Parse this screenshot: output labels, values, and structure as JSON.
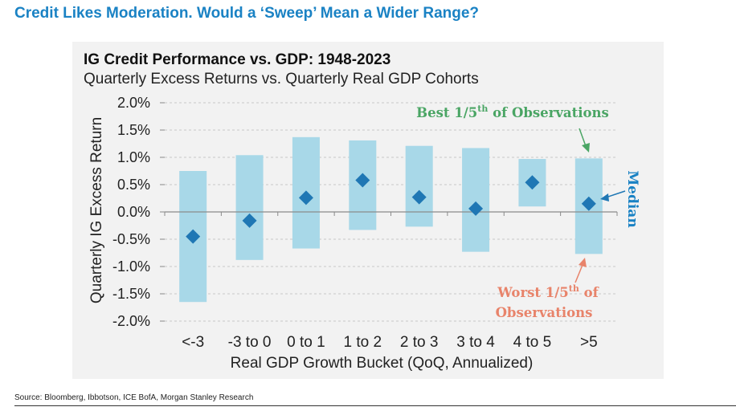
{
  "page": {
    "headline": "Credit Likes Moderation. Would a ‘Sweep’ Mean a Wider Range?",
    "source": "Source: Bloomberg, Ibbotson, ICE BofA, Morgan Stanley Research"
  },
  "colors": {
    "headline": "#1a82c4",
    "bar": "#a8d8e8",
    "median_marker": "#1f77b4",
    "best_annotation": "#4aa564",
    "worst_annotation": "#e8836a",
    "median_label": "#1a82c4"
  },
  "chart_data": {
    "type": "bar",
    "title": "IG Credit Performance vs. GDP: 1948-2023",
    "subtitle": "Quarterly Excess Returns vs. Quarterly Real GDP Cohorts",
    "xlabel": "Real GDP Growth Bucket (QoQ, Annualized)",
    "ylabel": "Quarterly IG Excess Return",
    "ylim": [
      -2.0,
      2.0
    ],
    "yticks": [
      2.0,
      1.5,
      1.0,
      0.5,
      0.0,
      -0.5,
      -1.0,
      -1.5,
      -2.0
    ],
    "ytick_labels": [
      "2.0%",
      "1.5%",
      "1.0%",
      "0.5%",
      "0.0%",
      "-0.5%",
      "-1.0%",
      "-1.5%",
      "-2.0%"
    ],
    "grid": "horizontal dashed",
    "categories": [
      "<-3",
      "-3 to 0",
      "0 to 1",
      "1 to 2",
      "2 to 3",
      "3 to 4",
      "4 to 5",
      ">5"
    ],
    "series": [
      {
        "name": "Worst 1/5th of Observations",
        "values": [
          -1.65,
          -0.88,
          -0.67,
          -0.33,
          -0.27,
          -0.73,
          0.1,
          -0.77
        ]
      },
      {
        "name": "Best 1/5th of Observations",
        "values": [
          0.75,
          1.04,
          1.37,
          1.31,
          1.21,
          1.17,
          0.97,
          0.98
        ]
      },
      {
        "name": "Median",
        "values": [
          -0.45,
          -0.16,
          0.26,
          0.58,
          0.27,
          0.06,
          0.54,
          0.15
        ]
      }
    ],
    "annotations": {
      "best": {
        "prefix": "Best 1/5",
        "sup": "th",
        "suffix": " of Observations"
      },
      "worst_line1": {
        "prefix": "Worst 1/5",
        "sup": "th",
        "suffix": " of"
      },
      "worst_line2": "Observations",
      "median": "Median"
    }
  }
}
